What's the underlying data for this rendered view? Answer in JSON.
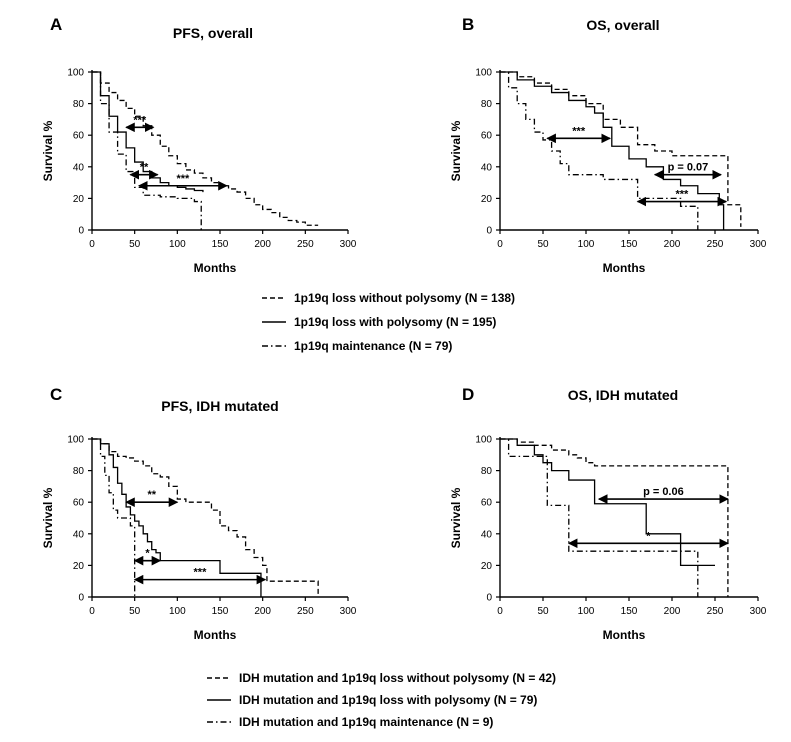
{
  "figure": {
    "legend_top": [
      {
        "label": "1p19q loss without polysomy (N = 138)",
        "style": "dash"
      },
      {
        "label": "1p19q loss with polysomy (N = 195)",
        "style": "solid"
      },
      {
        "label": "1p19q maintenance (N = 79)",
        "style": "dashdot"
      }
    ],
    "legend_bottom": [
      {
        "label": "IDH mutation and 1p19q loss without polysomy (N = 42)",
        "style": "dash"
      },
      {
        "label": "IDH mutation and 1p19q loss with polysomy (N = 79)",
        "style": "solid"
      },
      {
        "label": "IDH mutation and 1p19q maintenance (N = 9)",
        "style": "dashdot"
      }
    ]
  },
  "chart_data": [
    {
      "panel": "A",
      "type": "line",
      "title": "PFS, overall",
      "xlabel": "Months",
      "ylabel": "Survival %",
      "xlim": [
        0,
        300
      ],
      "ylim": [
        0,
        100
      ],
      "xticks": [
        "0",
        "50",
        "100",
        "150",
        "200",
        "250",
        "300"
      ],
      "yticks": [
        "0",
        "20",
        "40",
        "60",
        "80",
        "100"
      ],
      "series": [
        {
          "name": "1p19q loss without polysomy",
          "style": "dash",
          "x": [
            0,
            10,
            20,
            30,
            40,
            50,
            60,
            70,
            80,
            90,
            100,
            110,
            120,
            130,
            140,
            150,
            160,
            170,
            180,
            190,
            200,
            210,
            220,
            230,
            240,
            250,
            265
          ],
          "y": [
            100,
            93,
            87,
            82,
            77,
            72,
            66,
            60,
            53,
            47,
            42,
            38,
            36,
            33,
            30,
            28,
            26,
            24,
            20,
            16,
            13,
            11,
            8,
            6,
            5,
            3,
            3
          ]
        },
        {
          "name": "1p19q loss with polysomy",
          "style": "solid",
          "x": [
            0,
            10,
            20,
            30,
            40,
            50,
            60,
            70,
            80,
            90,
            100,
            110,
            120,
            130
          ],
          "y": [
            100,
            85,
            72,
            62,
            52,
            43,
            37,
            33,
            30,
            28,
            27,
            26,
            25,
            24
          ]
        },
        {
          "name": "1p19q maintenance",
          "style": "dashdot",
          "x": [
            0,
            10,
            20,
            30,
            40,
            50,
            60,
            70,
            80,
            100,
            120,
            128,
            128
          ],
          "y": [
            100,
            80,
            62,
            48,
            37,
            27,
            22,
            22,
            21,
            20,
            18,
            17,
            0
          ]
        }
      ],
      "annotations": [
        {
          "text": "***",
          "x1": 40,
          "x2": 72,
          "y": 65
        },
        {
          "text": "**",
          "x1": 45,
          "x2": 77,
          "y": 35
        },
        {
          "text": "***",
          "x1": 55,
          "x2": 158,
          "y": 28
        }
      ]
    },
    {
      "panel": "B",
      "type": "line",
      "title": "OS, overall",
      "xlabel": "Months",
      "ylabel": "Survival %",
      "xlim": [
        0,
        300
      ],
      "ylim": [
        0,
        100
      ],
      "xticks": [
        "0",
        "50",
        "100",
        "150",
        "200",
        "250",
        "300"
      ],
      "yticks": [
        "0",
        "20",
        "40",
        "60",
        "80",
        "100"
      ],
      "series": [
        {
          "name": "1p19q loss without polysomy",
          "style": "dash",
          "x": [
            0,
            20,
            40,
            60,
            80,
            100,
            120,
            140,
            160,
            180,
            200,
            220,
            240,
            250,
            265,
            265,
            280
          ],
          "y": [
            100,
            97,
            93,
            89,
            85,
            80,
            70,
            65,
            54,
            50,
            47,
            47,
            47,
            47,
            27,
            16,
            2
          ]
        },
        {
          "name": "1p19q loss with polysomy",
          "style": "solid",
          "x": [
            0,
            20,
            40,
            60,
            80,
            100,
            110,
            120,
            130,
            150,
            170,
            190,
            210,
            230,
            250,
            255,
            260
          ],
          "y": [
            100,
            95,
            91,
            87,
            82,
            78,
            74,
            65,
            53,
            45,
            40,
            32,
            28,
            23,
            23,
            16,
            0
          ]
        },
        {
          "name": "1p19q maintenance",
          "style": "dashdot",
          "x": [
            0,
            10,
            20,
            30,
            40,
            50,
            60,
            70,
            80,
            100,
            120,
            140,
            160,
            170,
            190,
            210,
            230,
            230
          ],
          "y": [
            100,
            90,
            80,
            70,
            62,
            57,
            50,
            42,
            35,
            35,
            32,
            32,
            20,
            20,
            20,
            15,
            15,
            0
          ]
        }
      ],
      "annotations": [
        {
          "text": "***",
          "x1": 55,
          "x2": 128,
          "y": 58
        },
        {
          "text": "p = 0.07",
          "x1": 180,
          "x2": 257,
          "y": 35
        },
        {
          "text": "***",
          "x1": 160,
          "x2": 263,
          "y": 18
        }
      ]
    },
    {
      "panel": "C",
      "type": "line",
      "title": "PFS, IDH mutated",
      "xlabel": "Months",
      "ylabel": "Survival %",
      "xlim": [
        0,
        300
      ],
      "ylim": [
        0,
        100
      ],
      "xticks": [
        "0",
        "50",
        "100",
        "150",
        "200",
        "250",
        "300"
      ],
      "yticks": [
        "0",
        "20",
        "40",
        "60",
        "80",
        "100"
      ],
      "series": [
        {
          "name": "IDH mutation and 1p19q loss without polysomy",
          "style": "dash",
          "x": [
            0,
            10,
            20,
            30,
            40,
            50,
            60,
            70,
            80,
            90,
            100,
            110,
            120,
            130,
            140,
            150,
            160,
            170,
            180,
            190,
            200,
            205,
            205,
            265,
            265
          ],
          "y": [
            100,
            97,
            92,
            89,
            88,
            86,
            83,
            78,
            76,
            70,
            62,
            60,
            60,
            60,
            55,
            45,
            42,
            38,
            30,
            25,
            20,
            20,
            10,
            10,
            0
          ]
        },
        {
          "name": "IDH mutation and 1p19q loss with polysomy",
          "style": "solid",
          "x": [
            0,
            10,
            20,
            25,
            30,
            35,
            40,
            45,
            50,
            55,
            60,
            65,
            70,
            75,
            80,
            90,
            100,
            120,
            140,
            150,
            160,
            180,
            195,
            198,
            198
          ],
          "y": [
            100,
            97,
            90,
            82,
            72,
            65,
            57,
            52,
            48,
            45,
            40,
            35,
            30,
            28,
            23,
            23,
            23,
            23,
            23,
            15,
            15,
            15,
            15,
            15,
            0
          ]
        },
        {
          "name": "IDH mutation and 1p19q maintenance",
          "style": "dashdot",
          "x": [
            0,
            10,
            15,
            20,
            25,
            30,
            38,
            45,
            50,
            50
          ],
          "y": [
            100,
            89,
            77,
            66,
            55,
            50,
            50,
            45,
            45,
            0
          ]
        }
      ],
      "annotations": [
        {
          "text": "**",
          "x1": 40,
          "x2": 100,
          "y": 60
        },
        {
          "text": "*",
          "x1": 50,
          "x2": 80,
          "y": 23
        },
        {
          "text": "***",
          "x1": 50,
          "x2": 203,
          "y": 11
        }
      ]
    },
    {
      "panel": "D",
      "type": "line",
      "title": "OS, IDH mutated",
      "xlabel": "Months",
      "ylabel": "Survival %",
      "xlim": [
        0,
        300
      ],
      "ylim": [
        0,
        100
      ],
      "xticks": [
        "0",
        "50",
        "100",
        "150",
        "200",
        "250",
        "300"
      ],
      "yticks": [
        "0",
        "20",
        "40",
        "60",
        "80",
        "100"
      ],
      "series": [
        {
          "name": "IDH mutation and 1p19q loss without polysomy",
          "style": "dash",
          "x": [
            0,
            20,
            40,
            60,
            80,
            90,
            100,
            110,
            120,
            265,
            265
          ],
          "y": [
            100,
            98,
            96,
            93,
            90,
            88,
            85,
            83,
            83,
            83,
            0
          ]
        },
        {
          "name": "IDH mutation and 1p19q loss with polysomy",
          "style": "solid",
          "x": [
            0,
            20,
            40,
            50,
            60,
            80,
            110,
            110,
            170,
            170,
            210,
            210,
            250
          ],
          "y": [
            100,
            96,
            90,
            85,
            80,
            74,
            74,
            59,
            59,
            40,
            40,
            20,
            20
          ]
        },
        {
          "name": "IDH mutation and 1p19q maintenance",
          "style": "dashdot",
          "x": [
            0,
            10,
            30,
            50,
            55,
            55,
            80,
            80,
            200,
            230,
            230
          ],
          "y": [
            100,
            89,
            89,
            89,
            89,
            58,
            58,
            29,
            29,
            29,
            0
          ]
        }
      ],
      "annotations": [
        {
          "text": "p = 0.06",
          "x1": 115,
          "x2": 265,
          "y": 62
        },
        {
          "text": "*",
          "x1": 80,
          "x2": 265,
          "y": 34
        }
      ]
    }
  ]
}
